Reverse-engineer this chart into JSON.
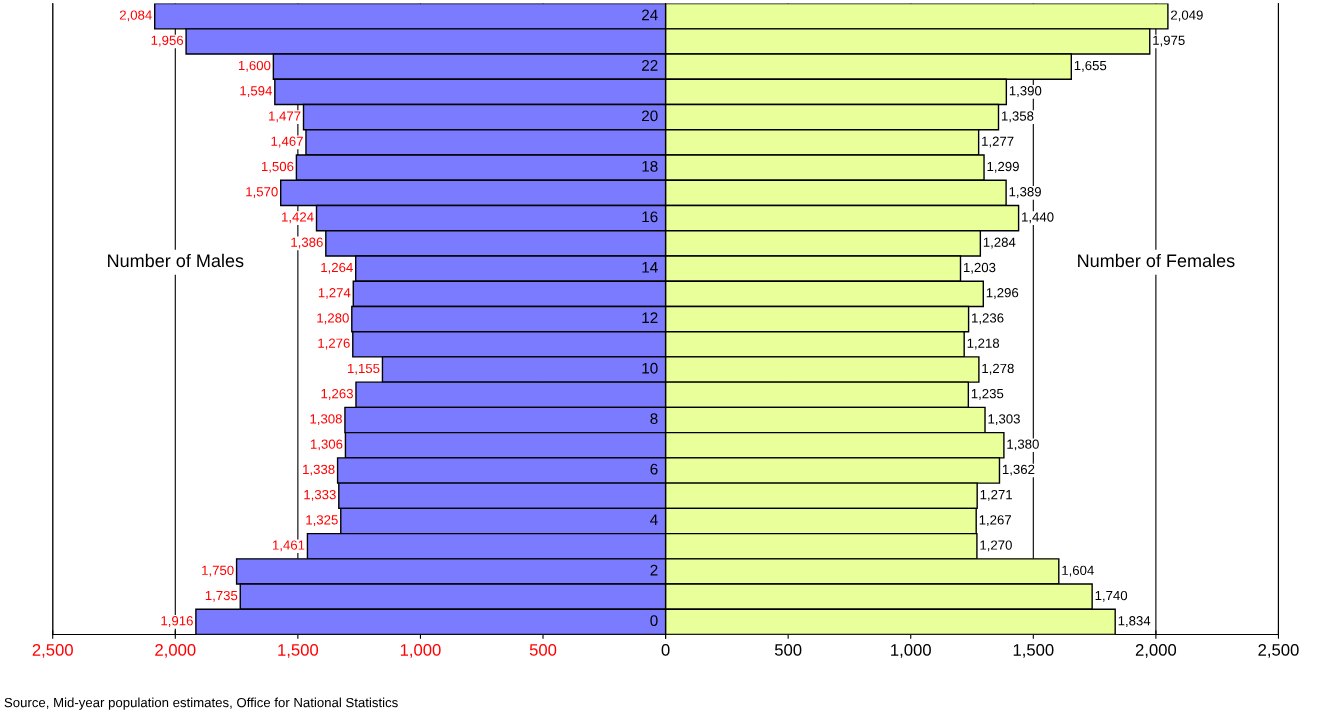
{
  "chart_data": [
    {
      "type": "bar",
      "orientation": "horizontal",
      "categories": [
        "24",
        null,
        "22",
        null,
        "20",
        null,
        "18",
        null,
        "16",
        null,
        "14",
        null,
        "12",
        null,
        "10",
        null,
        "8",
        null,
        "6",
        null,
        "4",
        null,
        "2",
        null,
        "0"
      ],
      "series": [
        {
          "name": "Number of Males",
          "color": "#7b7bff",
          "values": [
            2084,
            1956,
            1600,
            1594,
            1477,
            1467,
            1506,
            1570,
            1424,
            1386,
            1264,
            1274,
            1280,
            1276,
            1155,
            1263,
            1308,
            1306,
            1338,
            1333,
            1325,
            1461,
            1750,
            1735,
            1916
          ],
          "value_labels": [
            "2,084",
            "1,956",
            "1,600",
            "1,594",
            "1,477",
            "1,467",
            "1,506",
            "1,570",
            "1,424",
            "1,386",
            "1,264",
            "1,274",
            "1,280",
            "1,276",
            "1,155",
            "1,263",
            "1,308",
            "1,306",
            "1,338",
            "1,333",
            "1,325",
            "1,461",
            "1,750",
            "1,735",
            "1,916"
          ]
        }
      ],
      "xlim": [
        2500,
        0
      ],
      "xticks": [
        {
          "value": 2500,
          "label": "2,500"
        },
        {
          "value": 2000,
          "label": "2,000"
        },
        {
          "value": 1500,
          "label": "1,500"
        },
        {
          "value": 1000,
          "label": "1,000"
        },
        500,
        {
          "value": 0,
          "label": null
        }
      ],
      "grid": "x",
      "tick_labels": "x",
      "annotations": [
        "Source, Mid-year population estimates, Office for National Statistics"
      ]
    },
    {
      "type": "bar",
      "orientation": "horizontal",
      "categories": [
        "24",
        null,
        "22",
        null,
        "20",
        null,
        "18",
        null,
        "16",
        null,
        "14",
        null,
        "12",
        null,
        "10",
        null,
        "8",
        null,
        "6",
        null,
        "4",
        null,
        "2",
        null,
        "0"
      ],
      "series": [
        {
          "name": "Number of Females",
          "color": "#e8ff9a",
          "values": [
            2049,
            1975,
            1655,
            1390,
            1358,
            1277,
            1299,
            1389,
            1440,
            1284,
            1203,
            1296,
            1236,
            1218,
            1278,
            1235,
            1303,
            1380,
            1362,
            1271,
            1267,
            1270,
            1604,
            1740,
            1834
          ],
          "value_labels": [
            "2,049",
            "1,975",
            "1,655",
            "1,390",
            "1,358",
            "1,277",
            "1,299",
            "1,389",
            "1,440",
            "1,284",
            "1,203",
            "1,296",
            "1,236",
            "1,218",
            "1,278",
            "1,235",
            "1,303",
            "1,380",
            "1,362",
            "1,271",
            "1,267",
            "1,270",
            "1,604",
            "1,740",
            "1,834"
          ]
        }
      ],
      "xlim": [
        0,
        2500
      ],
      "xticks": [
        0,
        500,
        {
          "value": 1000,
          "label": "1,000"
        },
        {
          "value": 1500,
          "label": "1,500"
        },
        {
          "value": 2000,
          "label": "2,000"
        },
        {
          "value": 2500,
          "label": "2,500"
        }
      ],
      "grid": "x",
      "tick_labels": "x"
    }
  ]
}
